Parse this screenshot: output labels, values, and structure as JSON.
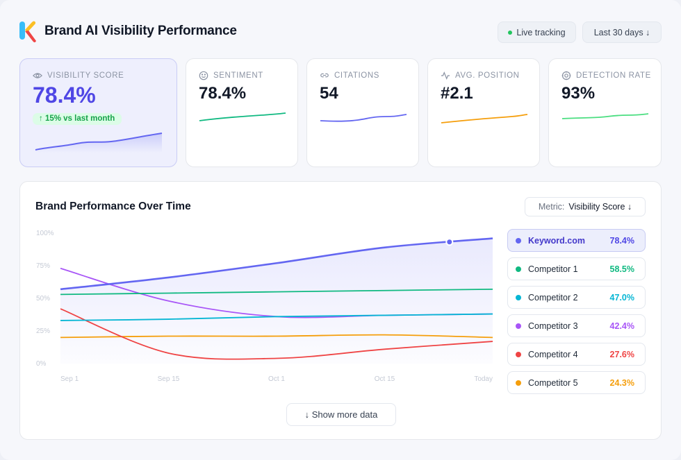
{
  "header": {
    "title": "Brand AI Visibility Performance",
    "live_label": "Live tracking",
    "range_label": "Last 30 days ↓"
  },
  "kpis": [
    {
      "label": "VISIBILITY SCORE",
      "value": "78.4%",
      "badge": "↑ 15% vs last month",
      "color": "#6366f1",
      "icon": "eye-icon"
    },
    {
      "label": "SENTIMENT",
      "value": "78.4%",
      "color": "#10b981",
      "icon": "smile-icon"
    },
    {
      "label": "CITATIONS",
      "value": "54",
      "color": "#6366f1",
      "icon": "link-icon"
    },
    {
      "label": "AVG. POSITION",
      "value": "#2.1",
      "color": "#f59e0b",
      "icon": "activity-icon"
    },
    {
      "label": "DETECTION RATE",
      "value": "93%",
      "color": "#4ade80",
      "icon": "target-icon"
    }
  ],
  "panel": {
    "title": "Brand Performance Over Time",
    "metric_key": "Metric:",
    "metric_value": "Visibility Score ↓",
    "show_more": "↓ Show more data"
  },
  "chart_data": {
    "type": "line",
    "title": "Brand Performance Over Time",
    "x": [
      "Sep 1",
      "Sep 15",
      "Oct 1",
      "Oct 15",
      "Today"
    ],
    "y_ticks": [
      "100%",
      "75%",
      "50%",
      "25%",
      "0%"
    ],
    "ylim": [
      0,
      100
    ],
    "series": [
      {
        "name": "Keyword.com",
        "color": "#6366f1",
        "values": [
          57,
          66,
          77,
          89,
          96
        ]
      },
      {
        "name": "Competitor 1",
        "color": "#10b981",
        "values": [
          53,
          54,
          55,
          56,
          57
        ]
      },
      {
        "name": "Competitor 2",
        "color": "#06b6d4",
        "values": [
          33,
          34,
          36,
          37,
          38
        ]
      },
      {
        "name": "Competitor 3",
        "color": "#a855f7",
        "values": [
          73,
          48,
          36,
          37,
          38
        ]
      },
      {
        "name": "Competitor 4",
        "color": "#ef4444",
        "values": [
          42,
          8,
          4,
          11,
          17
        ]
      },
      {
        "name": "Competitor 5",
        "color": "#f59e0b",
        "values": [
          20,
          21,
          21,
          22,
          20
        ]
      }
    ]
  },
  "legend": [
    {
      "name": "Keyword.com",
      "value": "78.4%",
      "color": "#6366f1",
      "value_color": "#4f46e5"
    },
    {
      "name": "Competitor 1",
      "value": "58.5%",
      "color": "#10b981",
      "value_color": "#10b981"
    },
    {
      "name": "Competitor 2",
      "value": "47.0%",
      "color": "#06b6d4",
      "value_color": "#06b6d4"
    },
    {
      "name": "Competitor 3",
      "value": "42.4%",
      "color": "#a855f7",
      "value_color": "#a855f7"
    },
    {
      "name": "Competitor 4",
      "value": "27.6%",
      "color": "#ef4444",
      "value_color": "#ef4444"
    },
    {
      "name": "Competitor 5",
      "value": "24.3%",
      "color": "#f59e0b",
      "value_color": "#f59e0b"
    }
  ]
}
